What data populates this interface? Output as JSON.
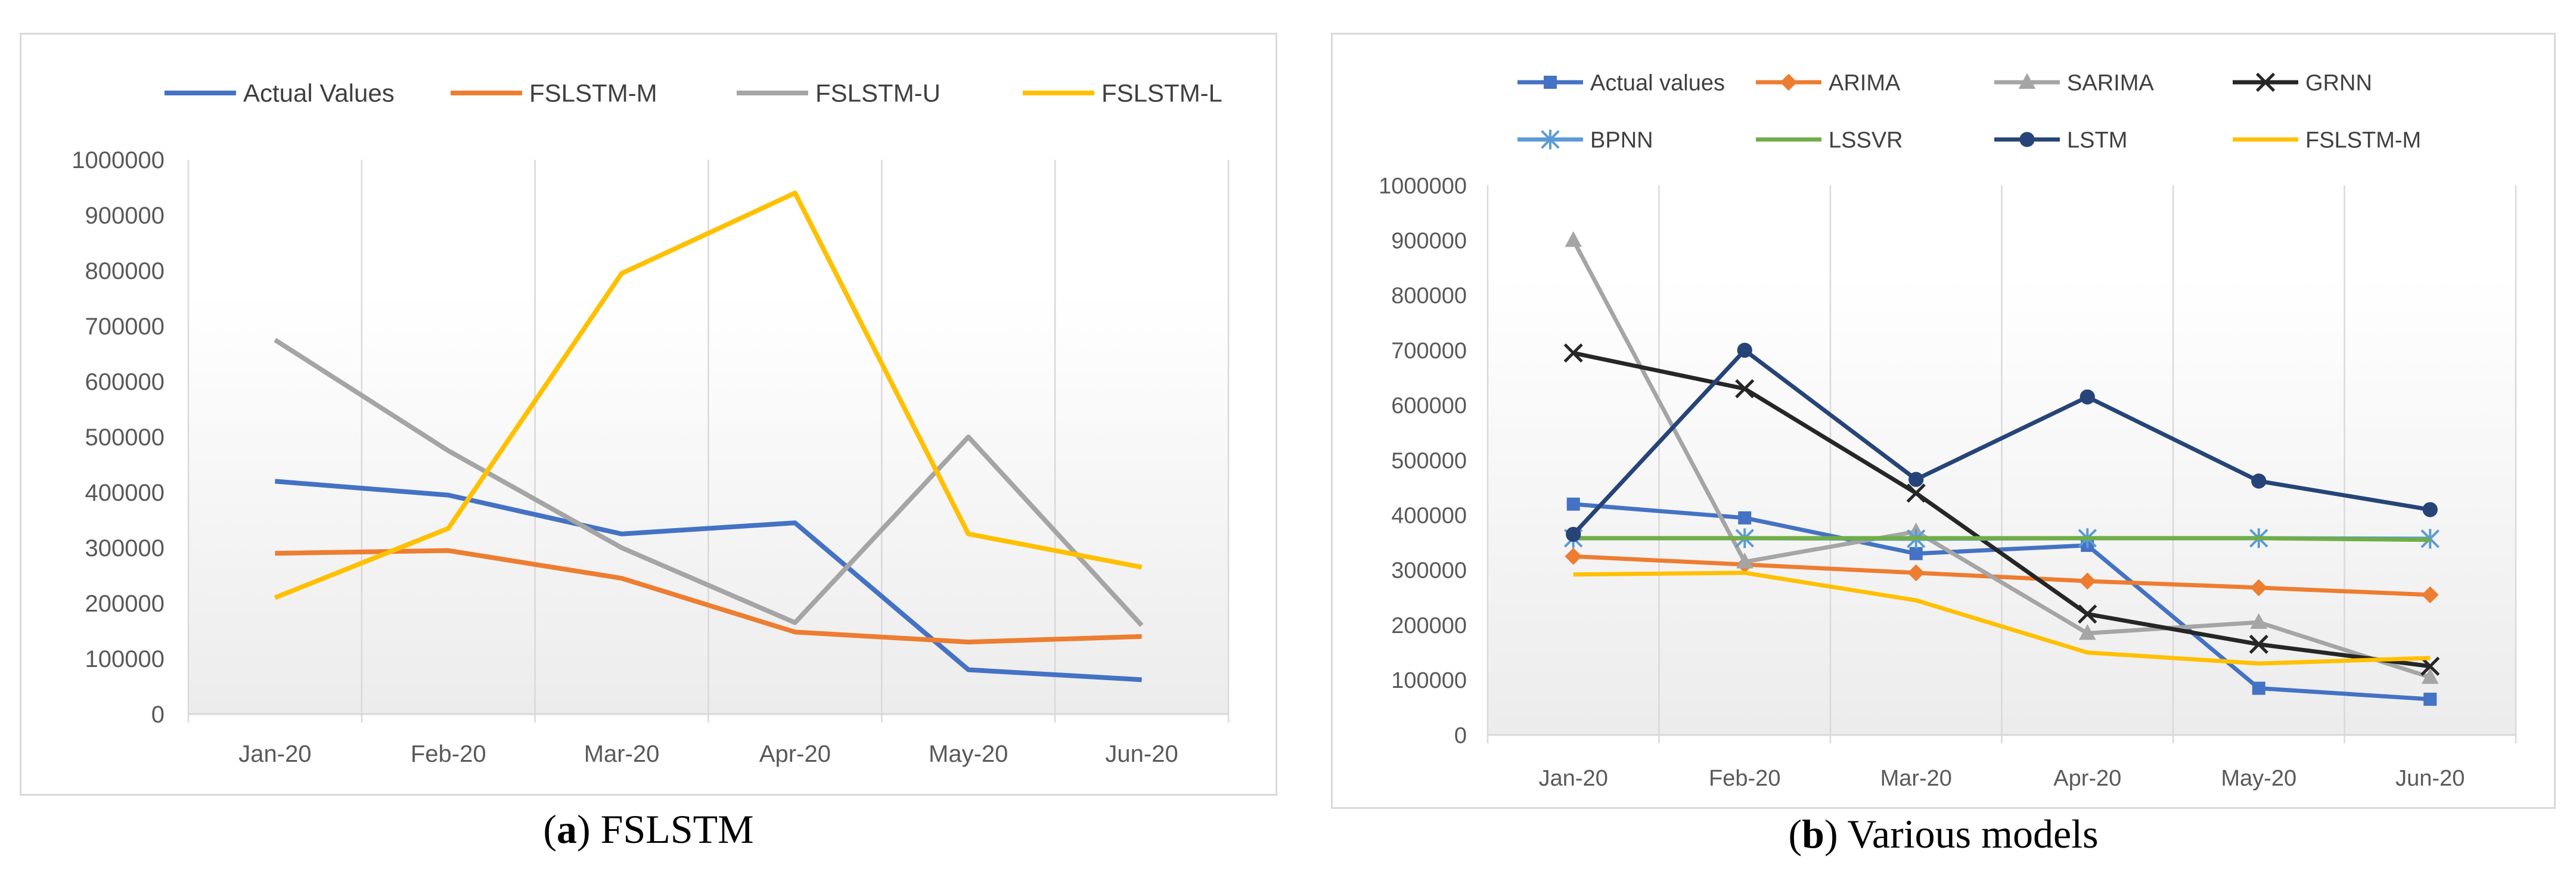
{
  "captions": {
    "a": {
      "label": "a",
      "text": "FSLSTM"
    },
    "b": {
      "label": "b",
      "text": "Various models"
    }
  },
  "chart_data": [
    {
      "type": "line",
      "title": "",
      "xlabel": "",
      "ylabel": "",
      "ylim": [
        0,
        1000000
      ],
      "yticks": [
        0,
        100000,
        200000,
        300000,
        400000,
        500000,
        600000,
        700000,
        800000,
        900000,
        1000000
      ],
      "categories": [
        "Jan-20",
        "Feb-20",
        "Mar-20",
        "Apr-20",
        "May-20",
        "Jun-20"
      ],
      "grid": "vertical",
      "legend": "top",
      "series": [
        {
          "name": "Actual Values",
          "color": "#4472C4",
          "marker": "none",
          "values": [
            420000,
            395000,
            325000,
            345000,
            80000,
            62000
          ]
        },
        {
          "name": "FSLSTM-M",
          "color": "#ED7D31",
          "marker": "none",
          "values": [
            290000,
            295000,
            245000,
            148000,
            130000,
            140000
          ]
        },
        {
          "name": "FSLSTM-U",
          "color": "#A5A5A5",
          "marker": "none",
          "values": [
            675000,
            475000,
            300000,
            165000,
            500000,
            160000
          ]
        },
        {
          "name": "FSLSTM-L",
          "color": "#FFC000",
          "marker": "none",
          "values": [
            210000,
            335000,
            795000,
            940000,
            325000,
            265000
          ]
        }
      ]
    },
    {
      "type": "line",
      "title": "",
      "xlabel": "",
      "ylabel": "",
      "ylim": [
        0,
        1000000
      ],
      "yticks": [
        0,
        100000,
        200000,
        300000,
        400000,
        500000,
        600000,
        700000,
        800000,
        900000,
        1000000
      ],
      "categories": [
        "Jan-20",
        "Feb-20",
        "Mar-20",
        "Apr-20",
        "May-20",
        "Jun-20"
      ],
      "grid": "vertical",
      "legend": "top",
      "series": [
        {
          "name": "Actual values",
          "color": "#4472C4",
          "marker": "square",
          "values": [
            420000,
            395000,
            330000,
            345000,
            85000,
            65000
          ]
        },
        {
          "name": "ARIMA",
          "color": "#ED7D31",
          "marker": "diamond",
          "values": [
            325000,
            310000,
            295000,
            280000,
            268000,
            255000
          ]
        },
        {
          "name": "SARIMA",
          "color": "#A5A5A5",
          "marker": "triangle",
          "values": [
            900000,
            315000,
            370000,
            185000,
            205000,
            105000
          ]
        },
        {
          "name": "GRNN",
          "color": "#262626",
          "marker": "x",
          "values": [
            695000,
            630000,
            440000,
            220000,
            165000,
            125000
          ]
        },
        {
          "name": "BPNN",
          "color": "#5B9BD5",
          "marker": "asterisk",
          "values": [
            358000,
            358000,
            357000,
            358000,
            358000,
            357000
          ]
        },
        {
          "name": "LSSVR",
          "color": "#70AD47",
          "marker": "none",
          "values": [
            358000,
            358000,
            358000,
            358000,
            358000,
            355000
          ]
        },
        {
          "name": "LSTM",
          "color": "#264478",
          "marker": "circle",
          "values": [
            365000,
            700000,
            465000,
            615000,
            462000,
            410000
          ]
        },
        {
          "name": "FSLSTM-M",
          "color": "#FFC000",
          "marker": "none",
          "values": [
            292000,
            295000,
            245000,
            150000,
            130000,
            140000
          ]
        }
      ]
    }
  ]
}
